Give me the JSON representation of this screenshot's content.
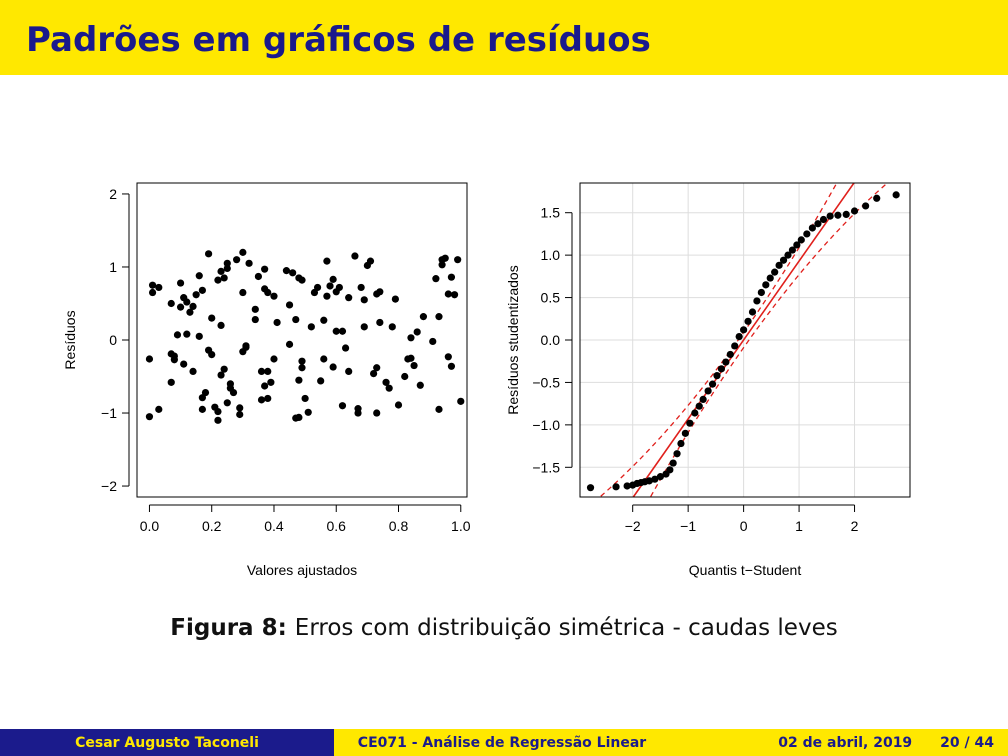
{
  "slide": {
    "title": "Padrões em gráficos de resíduos",
    "caption_label": "Figura 8:",
    "caption_text": "Erros com distribuição simétrica - caudas leves",
    "footer": {
      "author": "Cesar Augusto Taconeli",
      "course": "CE071 - Análise de Regressão Linear",
      "date": "02 de abril, 2019",
      "page": "20 / 44"
    }
  },
  "colors": {
    "title_bar": "#FFE800",
    "title_text": "#1a1a8c",
    "footer_dark": "#1b1b8c",
    "qq_line": "#e0201c"
  },
  "chart_data": [
    {
      "type": "scatter",
      "title": "",
      "xlabel": "Valores ajustados",
      "ylabel": "Resíduos",
      "xlim": [
        -0.04,
        1.02
      ],
      "ylim": [
        -2.15,
        2.15
      ],
      "xticks": [
        0.0,
        0.2,
        0.4,
        0.6,
        0.8,
        1.0
      ],
      "xtick_labels": [
        "0.0",
        "0.2",
        "0.4",
        "0.6",
        "0.8",
        "1.0"
      ],
      "yticks": [
        -2,
        -1,
        0,
        1,
        2
      ],
      "ytick_labels": [
        "−2",
        "−1",
        "0",
        "1",
        "2"
      ],
      "grid": false,
      "points": [
        [
          0.0,
          -1.05
        ],
        [
          0.0,
          -0.26
        ],
        [
          0.01,
          0.75
        ],
        [
          0.01,
          0.65
        ],
        [
          0.03,
          0.72
        ],
        [
          0.03,
          -0.95
        ],
        [
          0.07,
          -0.19
        ],
        [
          0.07,
          -0.58
        ],
        [
          0.07,
          0.5
        ],
        [
          0.08,
          -0.27
        ],
        [
          0.08,
          -0.22
        ],
        [
          0.09,
          0.07
        ],
        [
          0.1,
          0.78
        ],
        [
          0.1,
          0.45
        ],
        [
          0.11,
          0.58
        ],
        [
          0.11,
          -0.33
        ],
        [
          0.12,
          0.52
        ],
        [
          0.12,
          0.08
        ],
        [
          0.13,
          0.38
        ],
        [
          0.14,
          -0.43
        ],
        [
          0.14,
          0.46
        ],
        [
          0.15,
          0.62
        ],
        [
          0.16,
          0.05
        ],
        [
          0.16,
          0.88
        ],
        [
          0.17,
          0.68
        ],
        [
          0.17,
          -0.79
        ],
        [
          0.17,
          -0.95
        ],
        [
          0.18,
          -0.72
        ],
        [
          0.19,
          1.18
        ],
        [
          0.19,
          -0.14
        ],
        [
          0.2,
          0.3
        ],
        [
          0.2,
          -0.2
        ],
        [
          0.21,
          -0.92
        ],
        [
          0.22,
          -0.98
        ],
        [
          0.22,
          -1.1
        ],
        [
          0.22,
          0.82
        ],
        [
          0.23,
          -0.48
        ],
        [
          0.23,
          0.94
        ],
        [
          0.23,
          0.2
        ],
        [
          0.24,
          0.85
        ],
        [
          0.24,
          -0.4
        ],
        [
          0.25,
          0.98
        ],
        [
          0.25,
          1.05
        ],
        [
          0.25,
          -0.86
        ],
        [
          0.26,
          -0.6
        ],
        [
          0.26,
          -0.66
        ],
        [
          0.27,
          -0.72
        ],
        [
          0.28,
          1.1
        ],
        [
          0.29,
          -1.02
        ],
        [
          0.29,
          -0.93
        ],
        [
          0.3,
          -0.16
        ],
        [
          0.3,
          1.2
        ],
        [
          0.3,
          0.65
        ],
        [
          0.31,
          -0.08
        ],
        [
          0.31,
          -0.1
        ],
        [
          0.32,
          1.05
        ],
        [
          0.34,
          0.28
        ],
        [
          0.34,
          0.42
        ],
        [
          0.35,
          0.87
        ],
        [
          0.36,
          -0.43
        ],
        [
          0.36,
          -0.82
        ],
        [
          0.37,
          0.97
        ],
        [
          0.37,
          0.7
        ],
        [
          0.37,
          -0.63
        ],
        [
          0.38,
          0.65
        ],
        [
          0.38,
          -0.8
        ],
        [
          0.38,
          -0.43
        ],
        [
          0.39,
          -0.58
        ],
        [
          0.4,
          -0.26
        ],
        [
          0.4,
          0.6
        ],
        [
          0.41,
          0.24
        ],
        [
          0.44,
          0.95
        ],
        [
          0.45,
          0.48
        ],
        [
          0.45,
          -0.06
        ],
        [
          0.46,
          0.92
        ],
        [
          0.47,
          -1.07
        ],
        [
          0.47,
          0.28
        ],
        [
          0.48,
          -1.06
        ],
        [
          0.48,
          -0.55
        ],
        [
          0.48,
          0.85
        ],
        [
          0.49,
          -0.38
        ],
        [
          0.49,
          -0.29
        ],
        [
          0.49,
          0.82
        ],
        [
          0.5,
          -0.8
        ],
        [
          0.51,
          -0.99
        ],
        [
          0.52,
          0.18
        ],
        [
          0.53,
          0.65
        ],
        [
          0.54,
          0.72
        ],
        [
          0.55,
          -0.56
        ],
        [
          0.56,
          0.27
        ],
        [
          0.56,
          -0.26
        ],
        [
          0.57,
          1.08
        ],
        [
          0.57,
          0.6
        ],
        [
          0.58,
          0.74
        ],
        [
          0.59,
          0.83
        ],
        [
          0.59,
          -0.37
        ],
        [
          0.6,
          0.12
        ],
        [
          0.6,
          0.66
        ],
        [
          0.61,
          0.72
        ],
        [
          0.62,
          0.12
        ],
        [
          0.62,
          -0.9
        ],
        [
          0.63,
          -0.11
        ],
        [
          0.64,
          0.58
        ],
        [
          0.64,
          -0.43
        ],
        [
          0.66,
          1.15
        ],
        [
          0.67,
          -0.94
        ],
        [
          0.67,
          -1.0
        ],
        [
          0.68,
          0.72
        ],
        [
          0.69,
          0.18
        ],
        [
          0.69,
          0.55
        ],
        [
          0.7,
          1.02
        ],
        [
          0.71,
          1.08
        ],
        [
          0.72,
          -0.46
        ],
        [
          0.73,
          -0.38
        ],
        [
          0.73,
          0.63
        ],
        [
          0.73,
          -1.0
        ],
        [
          0.74,
          0.66
        ],
        [
          0.74,
          0.24
        ],
        [
          0.76,
          -0.58
        ],
        [
          0.77,
          -0.66
        ],
        [
          0.78,
          0.18
        ],
        [
          0.79,
          0.56
        ],
        [
          0.8,
          -0.89
        ],
        [
          0.82,
          -0.5
        ],
        [
          0.83,
          -0.26
        ],
        [
          0.84,
          -0.25
        ],
        [
          0.84,
          0.03
        ],
        [
          0.85,
          -0.35
        ],
        [
          0.86,
          0.11
        ],
        [
          0.87,
          -0.62
        ],
        [
          0.88,
          0.32
        ],
        [
          0.91,
          -0.02
        ],
        [
          0.92,
          0.84
        ],
        [
          0.93,
          0.32
        ],
        [
          0.93,
          -0.95
        ],
        [
          0.94,
          1.03
        ],
        [
          0.94,
          1.1
        ],
        [
          0.95,
          1.12
        ],
        [
          0.96,
          0.63
        ],
        [
          0.96,
          -0.23
        ],
        [
          0.97,
          0.86
        ],
        [
          0.97,
          -0.36
        ],
        [
          0.98,
          0.62
        ],
        [
          0.99,
          1.1
        ],
        [
          1.0,
          -0.84
        ]
      ]
    },
    {
      "type": "scatter",
      "subtype": "qq-plot",
      "title": "",
      "xlabel": "Quantis t−Student",
      "ylabel": "Resíduos studentizados",
      "xlim": [
        -2.95,
        3.0
      ],
      "ylim": [
        -1.85,
        1.85
      ],
      "xticks": [
        -2,
        -1,
        0,
        1,
        2
      ],
      "xtick_labels": [
        "−2",
        "−1",
        "0",
        "1",
        "2"
      ],
      "yticks": [
        -1.5,
        -1.0,
        -0.5,
        0.0,
        0.5,
        1.0,
        1.5
      ],
      "ytick_labels": [
        "−1.5",
        "−1.0",
        "−0.5",
        "0.0",
        "0.5",
        "1.0",
        "1.5"
      ],
      "grid": true,
      "reference_line": {
        "slope": 0.93,
        "intercept": 0.0,
        "style": "solid",
        "color": "#e0201c"
      },
      "confidence_band": {
        "style": "dashed",
        "color": "#e0201c"
      },
      "n_points": 150,
      "points": [
        [
          -2.76,
          -1.74
        ],
        [
          -2.3,
          -1.73
        ],
        [
          -2.1,
          -1.72
        ],
        [
          -2.0,
          -1.71
        ],
        [
          -1.92,
          -1.69
        ],
        [
          -1.85,
          -1.68
        ],
        [
          -1.78,
          -1.67
        ],
        [
          -1.7,
          -1.66
        ],
        [
          -1.6,
          -1.64
        ],
        [
          -1.5,
          -1.61
        ],
        [
          -1.4,
          -1.58
        ],
        [
          -1.33,
          -1.53
        ],
        [
          -1.27,
          -1.45
        ],
        [
          -1.2,
          -1.34
        ],
        [
          -1.13,
          -1.22
        ],
        [
          -1.05,
          -1.1
        ],
        [
          -0.97,
          -0.98
        ],
        [
          -0.88,
          -0.86
        ],
        [
          -0.8,
          -0.78
        ],
        [
          -0.73,
          -0.7
        ],
        [
          -0.64,
          -0.6
        ],
        [
          -0.56,
          -0.52
        ],
        [
          -0.48,
          -0.42
        ],
        [
          -0.4,
          -0.34
        ],
        [
          -0.32,
          -0.26
        ],
        [
          -0.24,
          -0.17
        ],
        [
          -0.16,
          -0.07
        ],
        [
          -0.08,
          0.04
        ],
        [
          0.0,
          0.12
        ],
        [
          0.08,
          0.22
        ],
        [
          0.16,
          0.33
        ],
        [
          0.24,
          0.46
        ],
        [
          0.32,
          0.56
        ],
        [
          0.4,
          0.65
        ],
        [
          0.48,
          0.73
        ],
        [
          0.56,
          0.8
        ],
        [
          0.64,
          0.88
        ],
        [
          0.72,
          0.94
        ],
        [
          0.8,
          1.0
        ],
        [
          0.88,
          1.06
        ],
        [
          0.96,
          1.12
        ],
        [
          1.04,
          1.18
        ],
        [
          1.14,
          1.25
        ],
        [
          1.24,
          1.32
        ],
        [
          1.34,
          1.37
        ],
        [
          1.44,
          1.42
        ],
        [
          1.56,
          1.46
        ],
        [
          1.7,
          1.47
        ],
        [
          1.85,
          1.48
        ],
        [
          2.0,
          1.52
        ],
        [
          2.2,
          1.58
        ],
        [
          2.4,
          1.67
        ],
        [
          2.75,
          1.71
        ]
      ]
    }
  ]
}
